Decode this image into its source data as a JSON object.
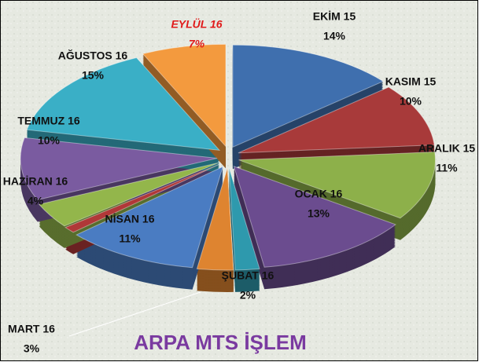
{
  "chart_data": {
    "type": "pie",
    "title": "ARPA MTS İŞLEM",
    "categories": [
      "EKİM 15",
      "KASIM 15",
      "ARALIK 15",
      "OCAK 16",
      "ŞUBAT 16",
      "MART 16",
      "NİSAN 16",
      null,
      "HAZİRAN 16",
      "TEMMUZ 16",
      "AĞUSTOS 16",
      "EYLÜL 16"
    ],
    "values": [
      14,
      10,
      11,
      13,
      2,
      3,
      11,
      1,
      4,
      10,
      15,
      7
    ],
    "value_labels": [
      "14%",
      "10%",
      "11%",
      "13%",
      "2%",
      "3%",
      "11%",
      null,
      "4%",
      "10%",
      "15%",
      "7%"
    ],
    "colors": [
      "#3f6fae",
      "#a83a3a",
      "#8db04a",
      "#6b4c8f",
      "#2e99ad",
      "#de8430",
      "#4a7cc2",
      "#b03838",
      "#93b64b",
      "#7a5ba0",
      "#3aafc6",
      "#f39a3e"
    ]
  }
}
